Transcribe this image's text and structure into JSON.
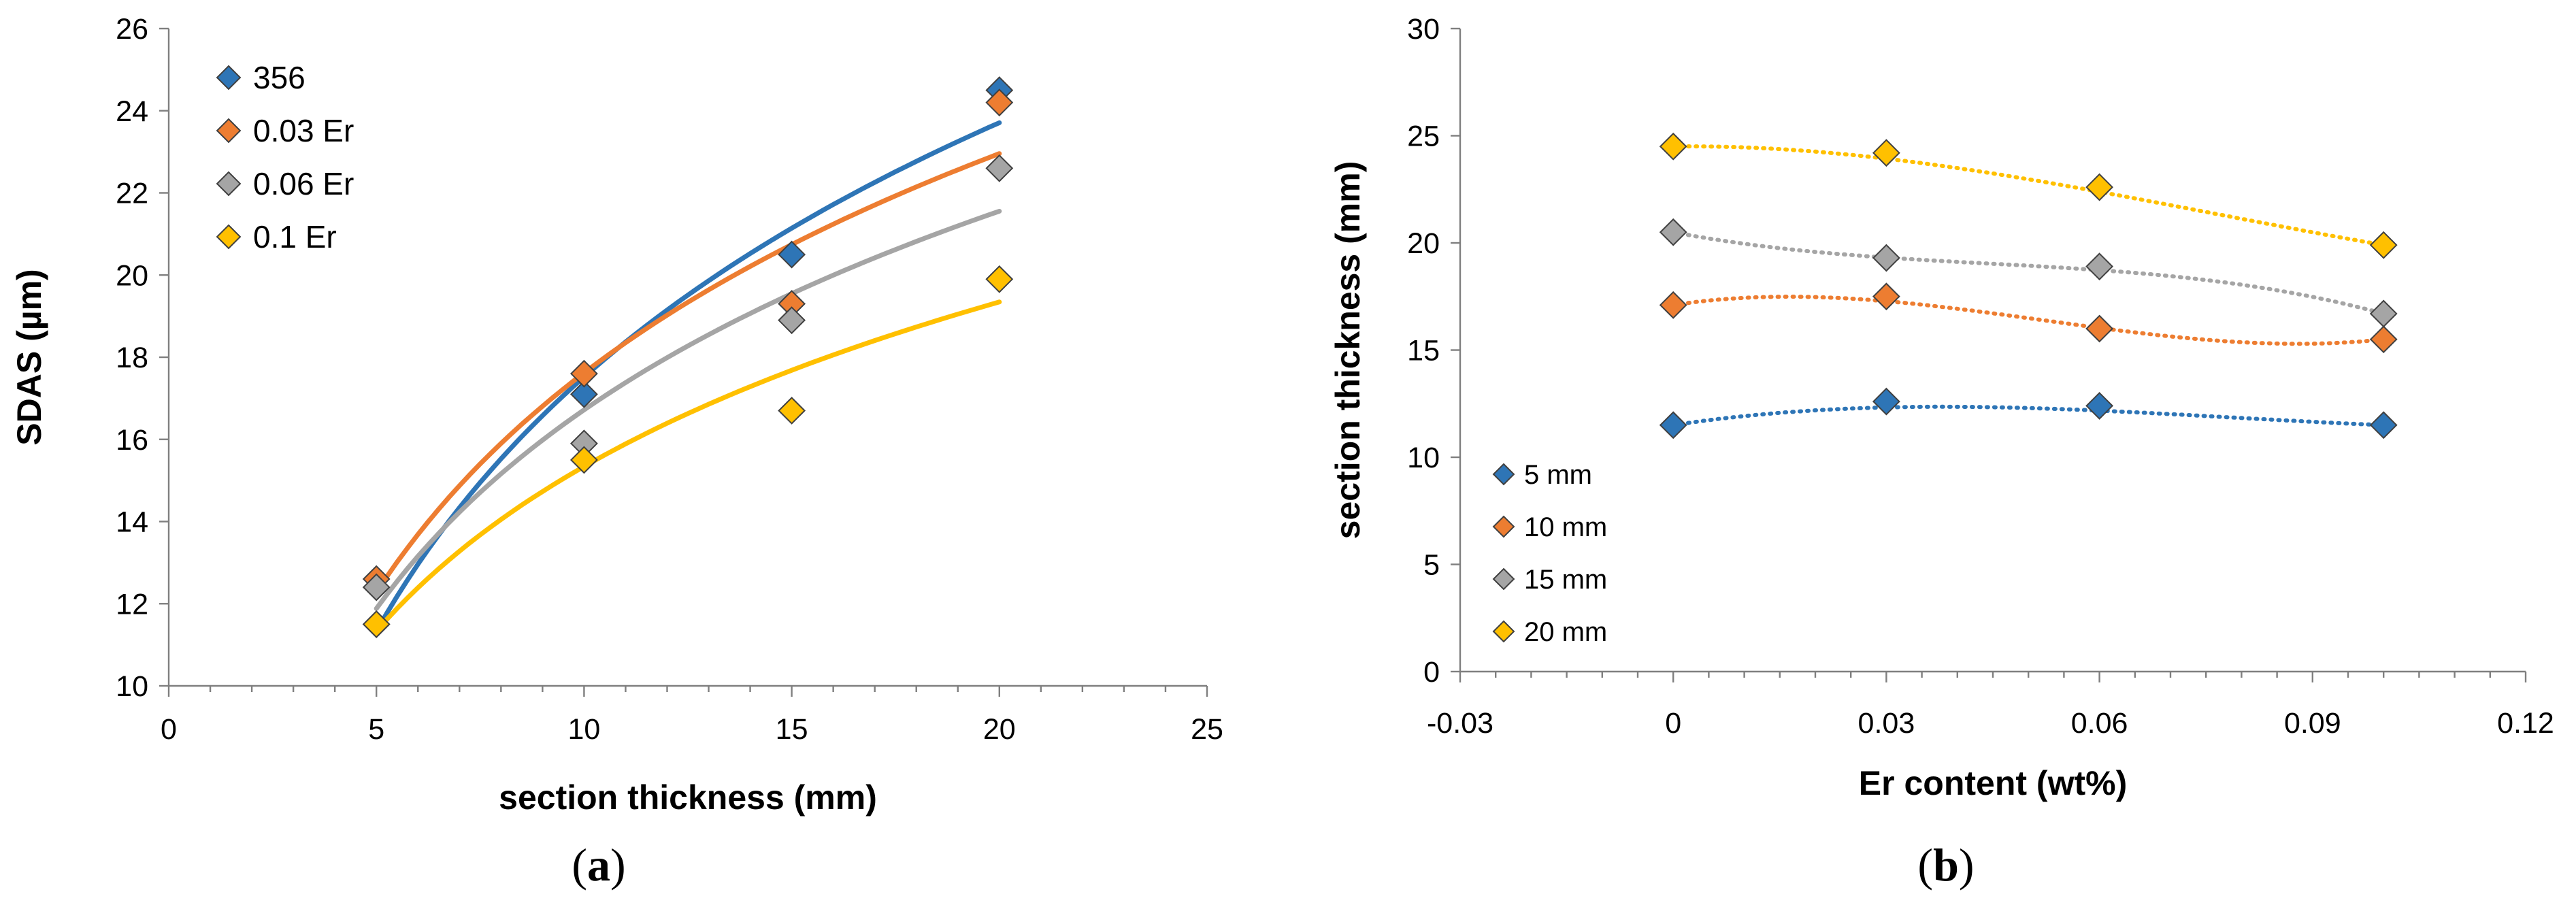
{
  "chart_data": [
    {
      "id": "a",
      "type": "scatter",
      "caption": "a",
      "xlabel": "section thickness (mm)",
      "ylabel": "SDAS (µm)",
      "xlim": [
        0,
        25
      ],
      "ylim": [
        10,
        26
      ],
      "xticks": [
        0,
        5,
        10,
        15,
        20,
        25
      ],
      "yticks": [
        10,
        12,
        14,
        16,
        18,
        20,
        22,
        24,
        26
      ],
      "x": [
        5,
        10,
        15,
        20
      ],
      "legend_position": "top-left",
      "trendline": "logarithmic, solid",
      "series": [
        {
          "name": "356",
          "color": "#2e75b6",
          "values": [
            11.5,
            17.1,
            20.5,
            24.5
          ],
          "fit": [
            11.4,
            17.4,
            21.1,
            23.8
          ]
        },
        {
          "name": "0.03 Er",
          "color": "#ed7d31",
          "values": [
            12.6,
            17.6,
            19.3,
            24.2
          ],
          "fit": [
            12.3,
            17.6,
            20.7,
            23.0
          ]
        },
        {
          "name": "0.06 Er",
          "color": "#a5a5a5",
          "values": [
            12.4,
            15.9,
            18.9,
            22.6
          ],
          "fit": [
            11.9,
            16.7,
            19.5,
            21.6
          ]
        },
        {
          "name": "0.1 Er",
          "color": "#ffc000",
          "values": [
            11.5,
            15.5,
            16.7,
            19.9
          ],
          "fit": [
            11.3,
            15.4,
            17.7,
            19.3
          ]
        }
      ]
    },
    {
      "id": "b",
      "type": "scatter",
      "caption": "b",
      "xlabel": "Er content (wt%)",
      "ylabel": "section thickness (mm)",
      "xlim": [
        -0.03,
        0.12
      ],
      "ylim": [
        0,
        30
      ],
      "xticks": [
        -0.03,
        0,
        0.03,
        0.06,
        0.09,
        0.12
      ],
      "xtick_labels": [
        "-0.03",
        "0",
        "0.03",
        "0.06",
        "0.09",
        "0.12"
      ],
      "yticks": [
        0,
        5,
        10,
        15,
        20,
        25,
        30
      ],
      "x": [
        0,
        0.03,
        0.06,
        0.1
      ],
      "legend_position": "bottom-left",
      "trendline": "polynomial, dotted",
      "series": [
        {
          "name": "5 mm",
          "color": "#2e75b6",
          "values": [
            11.5,
            12.6,
            12.4,
            11.5
          ]
        },
        {
          "name": "10 mm",
          "color": "#ed7d31",
          "values": [
            17.1,
            17.5,
            16.0,
            15.5
          ]
        },
        {
          "name": "15 mm",
          "color": "#a5a5a5",
          "values": [
            20.5,
            19.3,
            18.9,
            16.7
          ]
        },
        {
          "name": "20 mm",
          "color": "#ffc000",
          "values": [
            24.5,
            24.2,
            22.6,
            19.9
          ]
        }
      ]
    }
  ]
}
